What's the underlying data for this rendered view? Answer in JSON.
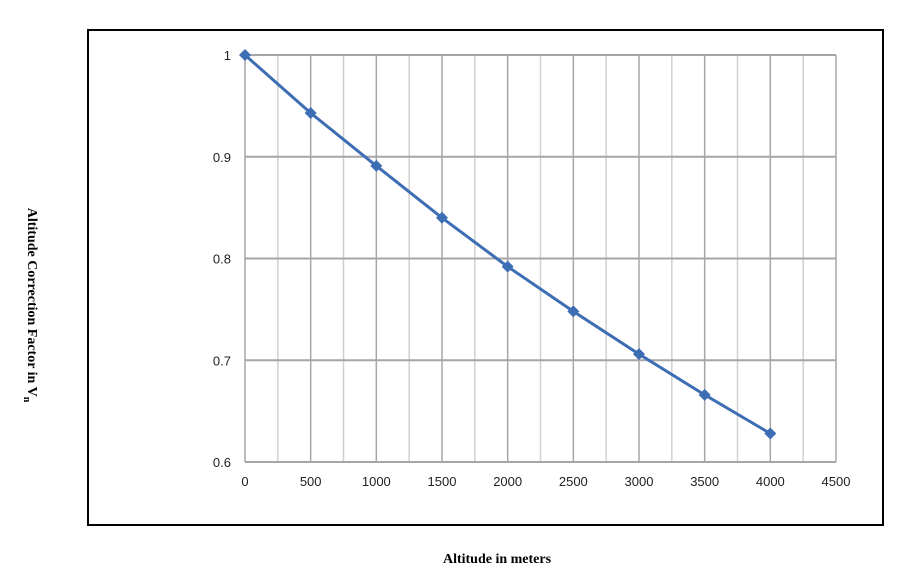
{
  "chart_data": {
    "type": "line",
    "xlabel": "Altitude in meters",
    "ylabel_main": "Altitude Correction Factor in V",
    "ylabel_sub": "n",
    "x": [
      0,
      500,
      1000,
      1500,
      2000,
      2500,
      3000,
      3500,
      4000
    ],
    "series": [
      {
        "values": [
          1.0,
          0.943,
          0.891,
          0.84,
          0.792,
          0.748,
          0.706,
          0.666,
          0.628
        ]
      }
    ],
    "xlim": [
      0,
      4500
    ],
    "ylim": [
      0.6,
      1.0
    ],
    "x_ticks": [
      "0",
      "500",
      "1000",
      "1500",
      "2000",
      "2500",
      "3000",
      "3500",
      "4000",
      "4500"
    ],
    "y_ticks": [
      "0.6",
      "0.7",
      "0.8",
      "0.9",
      "1"
    ],
    "x_tick_values": [
      0,
      500,
      1000,
      1500,
      2000,
      2500,
      3000,
      3500,
      4000,
      4500
    ],
    "y_tick_values": [
      0.6,
      0.7,
      0.8,
      0.9,
      1.0
    ],
    "x_minor_step": 250,
    "grid": true,
    "legend": "none",
    "colors": {
      "line": "#3d6eb4",
      "marker": "#3d6eb4",
      "grid_major": "#a6a6a6",
      "grid_minor": "#d0d0d0"
    }
  }
}
